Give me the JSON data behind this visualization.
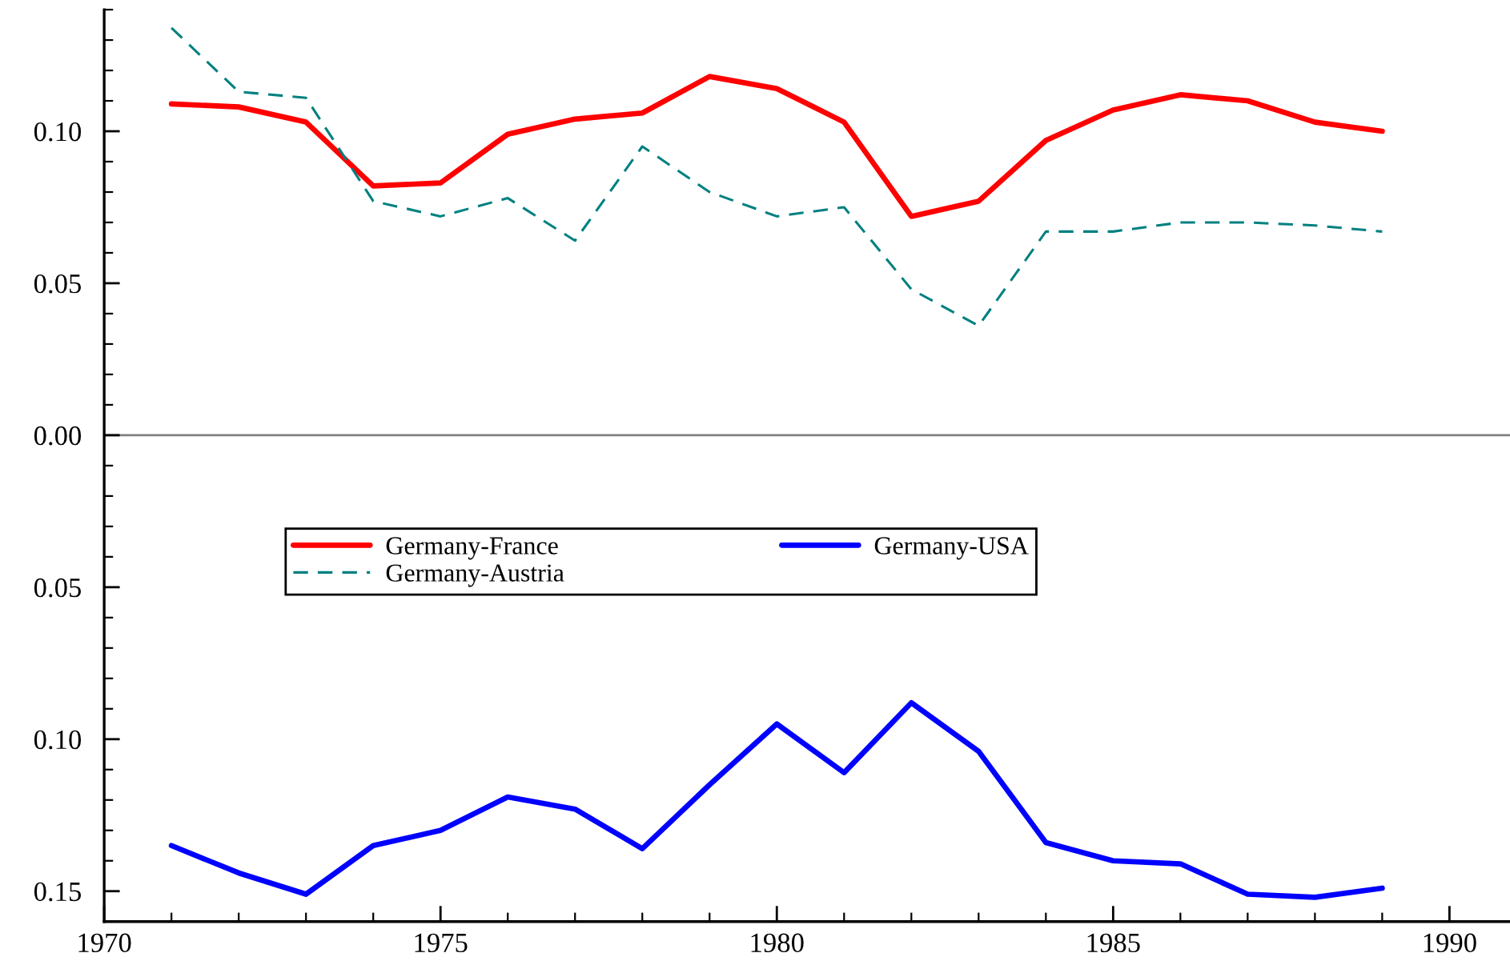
{
  "chart_data": {
    "type": "line",
    "x": [
      1971,
      1972,
      1973,
      1974,
      1975,
      1976,
      1977,
      1978,
      1979,
      1980,
      1981,
      1982,
      1983,
      1984,
      1985,
      1986,
      1987,
      1988,
      1989
    ],
    "series": [
      {
        "name": "Germany-France",
        "color": "#ff0000",
        "line_style": "solid",
        "values": [
          0.109,
          0.108,
          0.103,
          0.082,
          0.083,
          0.099,
          0.104,
          0.106,
          0.118,
          0.114,
          0.103,
          0.072,
          0.077,
          0.097,
          0.107,
          0.112,
          0.11,
          0.103,
          0.1
        ]
      },
      {
        "name": "Germany-Austria",
        "color": "#008080",
        "line_style": "dashed",
        "values": [
          0.134,
          0.113,
          0.111,
          0.077,
          0.072,
          0.078,
          0.064,
          0.095,
          0.08,
          0.072,
          0.075,
          0.048,
          0.036,
          0.067,
          0.067,
          0.07,
          0.07,
          0.069,
          0.067
        ]
      },
      {
        "name": "Germany-USA",
        "color": "#0000ff",
        "line_style": "solid",
        "values": [
          -0.135,
          -0.144,
          -0.151,
          -0.135,
          -0.13,
          -0.119,
          -0.123,
          -0.136,
          -0.115,
          -0.095,
          -0.111,
          -0.088,
          -0.104,
          -0.134,
          -0.14,
          -0.141,
          -0.151,
          -0.152,
          -0.149
        ]
      }
    ],
    "xlim": [
      1970,
      1990.9
    ],
    "xticks": [
      1970,
      1975,
      1980,
      1985,
      1990
    ],
    "ylim": [
      -0.16,
      0.14
    ],
    "yticks": [
      {
        "value": -0.15,
        "label": "0.15"
      },
      {
        "value": -0.1,
        "label": "0.10"
      },
      {
        "value": -0.05,
        "label": "0.05"
      },
      {
        "value": 0,
        "label": "0.00"
      },
      {
        "value": 0.05,
        "label": "0.05"
      },
      {
        "value": 0.1,
        "label": "0.10"
      }
    ],
    "ref_lines": [
      {
        "axis": "y",
        "value": 0,
        "color": "#808080"
      }
    ],
    "legend": "center left",
    "grid": false
  }
}
